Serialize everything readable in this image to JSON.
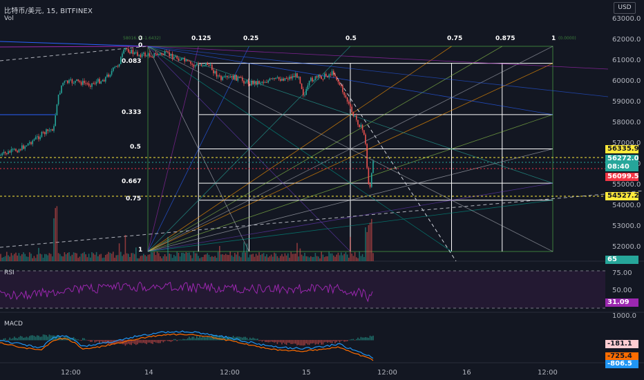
{
  "header": {
    "symbol": "比特币/美元, 15, BITFINEX",
    "volume_label": "Vol"
  },
  "currency_button": "USD",
  "price_axis": [
    "63000.0",
    "62000.0",
    "61000.0",
    "60000.0",
    "59000.0",
    "58000.0",
    "57000.0",
    "56000.0",
    "55000.0",
    "54000.0",
    "53000.0",
    "52000.0"
  ],
  "price_tags": [
    {
      "text": "56335.9",
      "bg": "#ffeb3b",
      "fg": "#131722"
    },
    {
      "text": "56272.0",
      "bg": "#26a69a",
      "fg": "#ffffff"
    },
    {
      "text": "08:40",
      "bg": "#26a69a",
      "fg": "#ffffff"
    },
    {
      "text": "56099.5",
      "bg": "#f23645",
      "fg": "#ffffff"
    },
    {
      "text": "54527.2",
      "bg": "#ffeb3b",
      "fg": "#131722"
    },
    {
      "text": "65",
      "bg": "#26a69a",
      "fg": "#ffffff"
    }
  ],
  "time_axis": [
    "12:00",
    "14",
    "12:00",
    "15",
    "12:00",
    "16",
    "12:00"
  ],
  "fib_fan": {
    "top_levels": [
      "0",
      "0.125",
      "0.25",
      "0.5",
      "0.75",
      "0.875",
      "1"
    ],
    "left_levels": [
      "0",
      "0.083",
      "0.333",
      "0.5",
      "0.667",
      "0.75",
      "1"
    ],
    "tiny_labels": [
      "58016.7 (-1.6432)",
      "(0.0000)"
    ]
  },
  "rsi": {
    "label": "RSI",
    "axis": [
      "75.00",
      "50.00"
    ],
    "value": "31.09",
    "value_color": "#9c27b0",
    "line_color": "#9c27b0"
  },
  "macd": {
    "label": "MACD",
    "axis": [
      "1000.0"
    ],
    "tags": [
      {
        "text": "-181.1",
        "bg": "#ffcdd2",
        "fg": "#131722"
      },
      {
        "text": "-725.4",
        "bg": "#ff6d00",
        "fg": "#131722"
      },
      {
        "text": "-806.5",
        "bg": "#2196f3",
        "fg": "#ffffff"
      }
    ]
  },
  "colors": {
    "up": "#26a69a",
    "down": "#ef5350",
    "background": "#131722"
  }
}
